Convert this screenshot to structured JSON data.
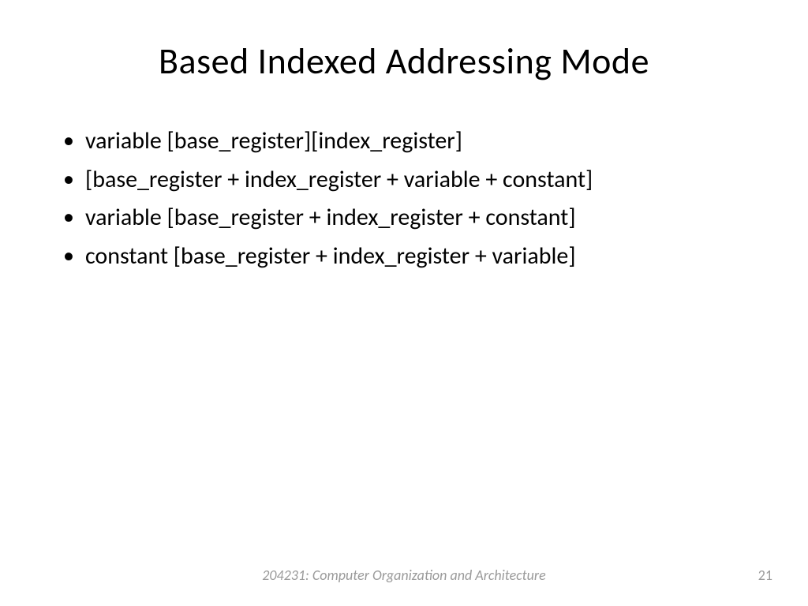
{
  "slide": {
    "title": "Based Indexed Addressing Mode",
    "background_color": "#ffffff",
    "title_color": "#000000",
    "title_fontsize": 46,
    "body_fontsize": 30,
    "body_color": "#000000",
    "bullets": [
      "variable [base_register][index_register]",
      "[base_register + index_register + variable + constant]",
      "variable [base_register + index_register + constant]",
      "constant [base_register + index_register + variable]"
    ],
    "footer": {
      "text": "204231: Computer Organization and Architecture",
      "color": "#9a9a9a",
      "fontsize": 18,
      "font_style": "italic"
    },
    "page_number": {
      "value": "21",
      "color": "#9a9a9a",
      "fontsize": 18
    }
  }
}
